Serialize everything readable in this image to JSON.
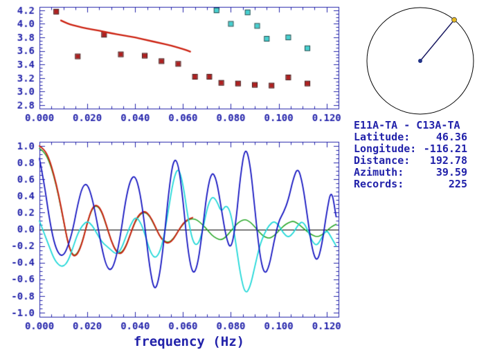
{
  "colors": {
    "axis_text": "#2222aa",
    "frame": "#2222aa",
    "zero_line": "#000000",
    "background": "#ffffff"
  },
  "station_info": {
    "title": "E11A-TA - C13A-TA",
    "rows": [
      {
        "label": "Latitude:",
        "value": "46.36"
      },
      {
        "label": "Longitude:",
        "value": "-116.21"
      },
      {
        "label": "Distance:",
        "value": "192.78"
      },
      {
        "label": "Azimuth:",
        "value": "39.59"
      },
      {
        "label": "Records:",
        "value": "225"
      }
    ]
  },
  "dial": {
    "azimuth_deg": 39.59,
    "ring_color": "#000000",
    "needle_color": "#181860",
    "center_dot_color": "#223388",
    "end_dot_color": "#e6b820"
  },
  "chart_data": [
    {
      "id": "dispersion",
      "type": "scatter",
      "title": "",
      "xlabel": "",
      "ylabel": "",
      "xlim": [
        0,
        0.125
      ],
      "ylim": [
        2.75,
        4.25
      ],
      "grid": false,
      "xticks": {
        "values": [
          0,
          0.02,
          0.04,
          0.06,
          0.08,
          0.1,
          0.12
        ],
        "labels": [
          "0.000",
          "0.020",
          "0.040",
          "0.060",
          "0.080",
          "0.100",
          "0.120"
        ]
      },
      "yticks": {
        "values": [
          2.8,
          3.0,
          3.2,
          3.4,
          3.6,
          3.8,
          4.0,
          4.2
        ],
        "labels": [
          "2.8",
          "3.0",
          "3.2",
          "3.4",
          "3.6",
          "3.8",
          "4.0",
          "4.2"
        ]
      },
      "series": [
        {
          "name": "phase-velocity-picks-red",
          "kind": "markers",
          "marker": "square",
          "color": "#b02020",
          "edge": "#3a0808",
          "x": [
            0.007,
            0.016,
            0.027,
            0.034,
            0.044,
            0.051,
            0.058,
            0.065,
            0.071,
            0.076,
            0.083,
            0.09,
            0.097,
            0.104,
            0.112
          ],
          "y": [
            4.18,
            3.52,
            3.84,
            3.55,
            3.53,
            3.45,
            3.41,
            3.22,
            3.22,
            3.13,
            3.12,
            3.1,
            3.09,
            3.21,
            3.12
          ]
        },
        {
          "name": "phase-velocity-picks-cyan",
          "kind": "markers",
          "marker": "square",
          "color": "#45d0d0",
          "edge": "#0a4444",
          "x": [
            0.074,
            0.08,
            0.087,
            0.091,
            0.095,
            0.104,
            0.112
          ],
          "y": [
            4.2,
            4.0,
            4.17,
            3.97,
            3.78,
            3.8,
            3.64
          ]
        },
        {
          "name": "reference-dispersion-curve",
          "kind": "line",
          "color": "#cc2211",
          "width": 2.4,
          "x": [
            0.009,
            0.012,
            0.016,
            0.02,
            0.025,
            0.03,
            0.035,
            0.04,
            0.045,
            0.05,
            0.055,
            0.06,
            0.063
          ],
          "y": [
            4.05,
            4.0,
            3.96,
            3.93,
            3.9,
            3.86,
            3.83,
            3.8,
            3.76,
            3.72,
            3.68,
            3.63,
            3.59
          ]
        }
      ]
    },
    {
      "id": "cross-spectrum",
      "type": "line",
      "title": "",
      "xlabel": "frequency (Hz)",
      "ylabel": "",
      "xlim": [
        0,
        0.125
      ],
      "ylim": [
        -1.05,
        1.05
      ],
      "grid": false,
      "hline": 0,
      "xticks": {
        "values": [
          0,
          0.02,
          0.04,
          0.06,
          0.08,
          0.1,
          0.12
        ],
        "labels": [
          "0.000",
          "0.020",
          "0.040",
          "0.060",
          "0.080",
          "0.100",
          "0.120"
        ]
      },
      "yticks": {
        "values": [
          -1.0,
          -0.8,
          -0.6,
          -0.4,
          -0.2,
          0.0,
          0.2,
          0.4,
          0.6,
          0.8,
          1.0
        ],
        "labels": [
          "-1.0",
          "-0.8",
          "-0.6",
          "-0.4",
          "-0.2",
          "0.0",
          "0.2",
          "0.4",
          "0.6",
          "0.8",
          "1.0"
        ]
      },
      "series": [
        {
          "name": "model-bessel-green",
          "kind": "line",
          "color": "#2aa82a",
          "width": 1.6,
          "x0": 0,
          "dx": 0.002,
          "y": [
            0.97,
            0.93,
            0.82,
            0.64,
            0.4,
            0.11,
            -0.18,
            -0.32,
            -0.29,
            -0.14,
            0.08,
            0.25,
            0.29,
            0.21,
            0.04,
            -0.14,
            -0.26,
            -0.29,
            -0.21,
            -0.06,
            0.09,
            0.18,
            0.21,
            0.16,
            0.05,
            -0.07,
            -0.14,
            -0.16,
            -0.11,
            -0.02,
            0.06,
            0.11,
            0.13,
            0.11,
            0.06,
            0.0,
            -0.07,
            -0.11,
            -0.13,
            -0.09,
            -0.02,
            0.05,
            0.1,
            0.12,
            0.09,
            0.03,
            -0.04,
            -0.09,
            -0.11,
            -0.08,
            -0.02,
            0.04,
            0.08,
            0.1,
            0.07,
            0.02,
            -0.03,
            -0.07,
            -0.09,
            -0.07,
            -0.02,
            0.03,
            0.06
          ]
        },
        {
          "name": "fitted-bessel-red",
          "kind": "line",
          "color": "#cc2211",
          "width": 2.0,
          "x0": 0,
          "dx": 0.002,
          "y": [
            1.0,
            0.96,
            0.85,
            0.66,
            0.42,
            0.12,
            -0.18,
            -0.33,
            -0.3,
            -0.15,
            0.08,
            0.26,
            0.3,
            0.22,
            0.05,
            -0.14,
            -0.27,
            -0.3,
            -0.22,
            -0.06,
            0.1,
            0.19,
            0.22,
            0.17,
            0.06,
            -0.07,
            -0.15,
            -0.17,
            -0.12,
            -0.02,
            0.07,
            0.12,
            0.14
          ]
        },
        {
          "name": "observed-spectrum-cyan",
          "kind": "line",
          "color": "#22d8d8",
          "width": 1.8,
          "x0": 0,
          "dx": 0.002,
          "y": [
            0.1,
            -0.05,
            -0.2,
            -0.35,
            -0.43,
            -0.45,
            -0.38,
            -0.22,
            -0.05,
            0.05,
            0.1,
            0.05,
            -0.05,
            -0.15,
            -0.2,
            -0.25,
            -0.3,
            -0.25,
            -0.1,
            0.05,
            0.15,
            0.1,
            -0.05,
            -0.25,
            -0.35,
            -0.3,
            -0.1,
            0.25,
            0.6,
            0.75,
            0.55,
            0.15,
            -0.15,
            -0.2,
            -0.05,
            0.25,
            0.4,
            0.35,
            0.2,
            0.3,
            0.2,
            -0.15,
            -0.55,
            -0.78,
            -0.7,
            -0.45,
            -0.2,
            -0.05,
            0.05,
            0.1,
            0.05,
            -0.05,
            -0.1,
            -0.05,
            0.05,
            0.1,
            0.0,
            -0.15,
            -0.2,
            -0.1,
            0.0,
            -0.1,
            -0.2
          ]
        },
        {
          "name": "observed-spectrum-blue",
          "kind": "line",
          "color": "#1414c0",
          "width": 1.8,
          "x0": 0,
          "dx": 0.002,
          "y": [
            0.85,
            0.55,
            0.15,
            -0.15,
            -0.3,
            -0.32,
            -0.2,
            0.0,
            0.3,
            0.52,
            0.55,
            0.38,
            0.1,
            -0.22,
            -0.45,
            -0.5,
            -0.35,
            -0.05,
            0.35,
            0.6,
            0.65,
            0.45,
            0.05,
            -0.45,
            -0.75,
            -0.6,
            -0.15,
            0.45,
            0.85,
            0.8,
            0.35,
            -0.25,
            -0.55,
            -0.45,
            -0.05,
            0.45,
            0.7,
            0.6,
            0.25,
            -0.1,
            -0.25,
            0.05,
            0.65,
            1.0,
            0.8,
            0.25,
            -0.3,
            -0.55,
            -0.45,
            -0.15,
            0.1,
            0.2,
            0.35,
            0.6,
            0.75,
            0.55,
            0.15,
            -0.25,
            -0.4,
            -0.2,
            0.2,
            0.5,
            0.15
          ]
        }
      ]
    }
  ]
}
